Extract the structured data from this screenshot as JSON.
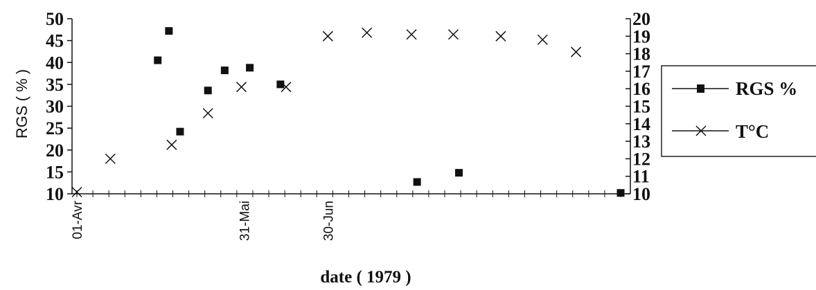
{
  "chart_data": {
    "type": "scatter",
    "title": "",
    "xlabel": "date ( 1979 )",
    "ylabel": "RGS ( % )",
    "y2label": "",
    "x_start": "01-Avr",
    "x_end": "13-Oct",
    "x_tick_labels": [
      {
        "date": "01-Avr",
        "label": "01-Avr"
      },
      {
        "date": "31-Mai",
        "label": "31-Mai"
      },
      {
        "date": "30-Jun",
        "label": "30-Jun"
      }
    ],
    "ylim": [
      10,
      50
    ],
    "y_ticks": [
      "10",
      "15",
      "20",
      "25",
      "30",
      "35",
      "40",
      "45",
      "50"
    ],
    "y2lim": [
      10,
      20
    ],
    "y2_ticks": [
      "10",
      "11",
      "12",
      "13",
      "14",
      "15",
      "16",
      "17",
      "18",
      "19",
      "20"
    ],
    "grid": false,
    "legend_position": "right",
    "series": [
      {
        "name": "RGS %",
        "marker": "square",
        "axis": "left",
        "points": [
          {
            "x": "30-Avr",
            "y": 40.5
          },
          {
            "x": "04-Mai",
            "y": 47.2
          },
          {
            "x": "08-Mai",
            "y": 24.2
          },
          {
            "x": "18-Mai",
            "y": 33.6
          },
          {
            "x": "24-Mai",
            "y": 38.2
          },
          {
            "x": "02-Jun",
            "y": 38.8
          },
          {
            "x": "13-Jun",
            "y": 35.0
          },
          {
            "x": "01-Aou",
            "y": 12.7
          },
          {
            "x": "16-Aou",
            "y": 14.8
          },
          {
            "x": "13-Oct",
            "y": 10.2
          }
        ]
      },
      {
        "name": "T°C",
        "marker": "x",
        "axis": "right",
        "points": [
          {
            "x": "01-Avr",
            "y": 10.1
          },
          {
            "x": "13-Avr",
            "y": 12.0
          },
          {
            "x": "05-Mai",
            "y": 12.8
          },
          {
            "x": "18-Mai",
            "y": 14.6
          },
          {
            "x": "30-Mai",
            "y": 16.1
          },
          {
            "x": "15-Jun",
            "y": 16.1
          },
          {
            "x": "30-Jun",
            "y": 19.0
          },
          {
            "x": "14-Jul",
            "y": 19.2
          },
          {
            "x": "30-Jul",
            "y": 19.1
          },
          {
            "x": "14-Aou",
            "y": 19.1
          },
          {
            "x": "31-Aou",
            "y": 19.0
          },
          {
            "x": "15-Sep",
            "y": 18.8
          },
          {
            "x": "27-Sep",
            "y": 18.1
          }
        ]
      }
    ]
  }
}
